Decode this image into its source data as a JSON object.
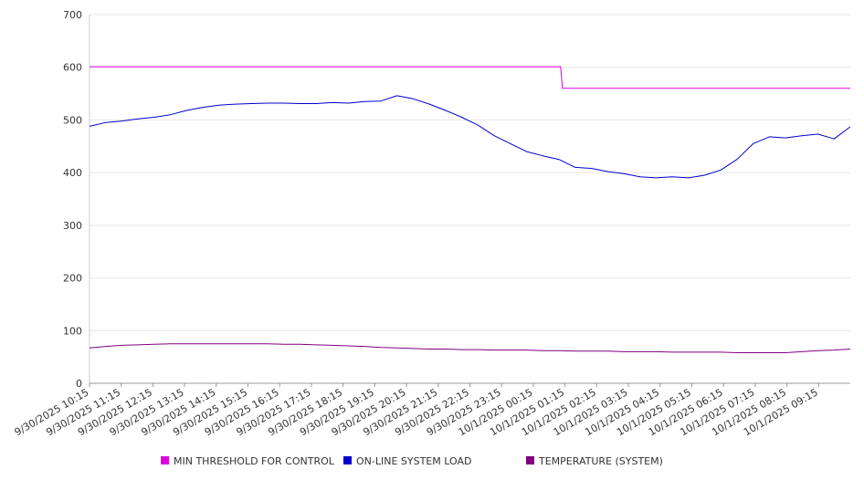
{
  "chart_data": {
    "type": "line",
    "title": "",
    "xlabel": "",
    "ylabel": "",
    "ylim": [
      0,
      700
    ],
    "yticks": [
      0,
      100,
      200,
      300,
      400,
      500,
      600,
      700
    ],
    "grid": true,
    "legend_position": "bottom",
    "x_tick_labels": [
      "9/30/2025 10:15",
      "9/30/2025 11:15",
      "9/30/2025 12:15",
      "9/30/2025 13:15",
      "9/30/2025 14:15",
      "9/30/2025 15:15",
      "9/30/2025 16:15",
      "9/30/2025 17:15",
      "9/30/2025 18:15",
      "9/30/2025 19:15",
      "9/30/2025 20:15",
      "9/30/2025 21:15",
      "9/30/2025 22:15",
      "9/30/2025 23:15",
      "10/1/2025 00:15",
      "10/1/2025 01:15",
      "10/1/2025 02:15",
      "10/1/2025 03:15",
      "10/1/2025 04:15",
      "10/1/2025 05:15",
      "10/1/2025 06:15",
      "10/1/2025 07:15",
      "10/1/2025 08:15",
      "10/1/2025 09:15"
    ],
    "x": [
      "9/30/2025 10:15",
      "9/30/2025 10:45",
      "9/30/2025 11:15",
      "9/30/2025 11:45",
      "9/30/2025 12:15",
      "9/30/2025 12:45",
      "9/30/2025 13:15",
      "9/30/2025 13:45",
      "9/30/2025 14:15",
      "9/30/2025 14:45",
      "9/30/2025 15:15",
      "9/30/2025 15:45",
      "9/30/2025 16:15",
      "9/30/2025 16:45",
      "9/30/2025 17:15",
      "9/30/2025 17:45",
      "9/30/2025 18:15",
      "9/30/2025 18:45",
      "9/30/2025 19:15",
      "9/30/2025 19:45",
      "9/30/2025 20:15",
      "9/30/2025 20:45",
      "9/30/2025 21:15",
      "9/30/2025 21:45",
      "9/30/2025 22:15",
      "9/30/2025 22:45",
      "9/30/2025 23:15",
      "9/30/2025 23:45",
      "10/1/2025 00:15",
      "10/1/2025 00:45",
      "10/1/2025 01:15",
      "10/1/2025 01:45",
      "10/1/2025 02:15",
      "10/1/2025 02:45",
      "10/1/2025 03:15",
      "10/1/2025 03:45",
      "10/1/2025 04:15",
      "10/1/2025 04:45",
      "10/1/2025 05:15",
      "10/1/2025 05:45",
      "10/1/2025 06:15",
      "10/1/2025 06:45",
      "10/1/2025 07:15",
      "10/1/2025 07:45",
      "10/1/2025 08:15",
      "10/1/2025 08:45",
      "10/1/2025 09:15",
      "10/1/2025 09:45"
    ],
    "series": [
      {
        "name": "MIN THRESHOLD FOR CONTROL",
        "color": "#dd00dd",
        "values": [
          601,
          601,
          601,
          601,
          601,
          601,
          601,
          601,
          601,
          601,
          601,
          601,
          601,
          601,
          601,
          601,
          601,
          601,
          601,
          601,
          601,
          601,
          601,
          601,
          601,
          601,
          601,
          601,
          601,
          601,
          560,
          560,
          560,
          560,
          560,
          560,
          560,
          560,
          560,
          560,
          560,
          560,
          560,
          560,
          560,
          560,
          560,
          560
        ]
      },
      {
        "name": "ON-LINE SYSTEM LOAD",
        "color": "#0000cc",
        "values": [
          488,
          495,
          498,
          502,
          505,
          510,
          518,
          524,
          528,
          530,
          531,
          532,
          532,
          531,
          531,
          533,
          532,
          535,
          536,
          546,
          540,
          530,
          518,
          505,
          490,
          470,
          455,
          440,
          432,
          425,
          410,
          408,
          402,
          398,
          392,
          390,
          392,
          390,
          395,
          405,
          425,
          455,
          468,
          466,
          470,
          473,
          464,
          487
        ]
      },
      {
        "name": "TEMPERATURE (SYSTEM)",
        "color": "#800080",
        "values": [
          67,
          70,
          72,
          73,
          74,
          75,
          75,
          75,
          75,
          75,
          75,
          75,
          74,
          74,
          73,
          72,
          71,
          70,
          68,
          67,
          66,
          65,
          65,
          64,
          64,
          63,
          63,
          63,
          62,
          62,
          61,
          61,
          61,
          60,
          60,
          60,
          59,
          59,
          59,
          59,
          58,
          58,
          58,
          58,
          60,
          62,
          63,
          65
        ]
      }
    ]
  }
}
